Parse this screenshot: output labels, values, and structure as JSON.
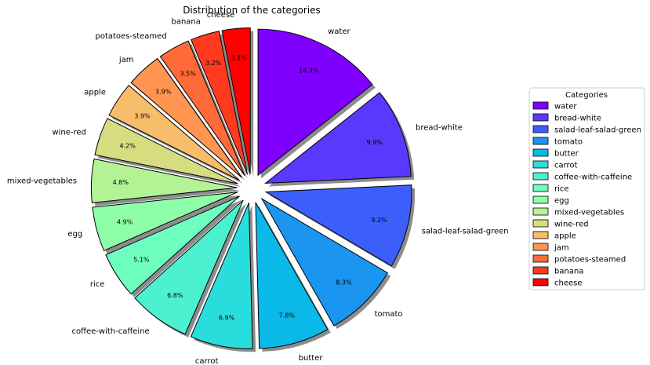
{
  "chart_data": {
    "type": "pie",
    "title": "Distribution of the categories",
    "start_angle_deg": 90,
    "direction": "clockwise",
    "exploded": true,
    "shadow": true,
    "legend": {
      "title": "Categories",
      "placement": "right"
    },
    "slices": [
      {
        "label": "water",
        "value": 14.3,
        "pct_label": "14.3%",
        "color": "#8000ff"
      },
      {
        "label": "bread-white",
        "value": 9.9,
        "pct_label": "9.9%",
        "color": "#5b38fd"
      },
      {
        "label": "salad-leaf-salad-green",
        "value": 9.2,
        "pct_label": "9.2%",
        "color": "#3c5ffb"
      },
      {
        "label": "tomato",
        "value": 8.3,
        "pct_label": "8.3%",
        "color": "#1a95f0"
      },
      {
        "label": "butter",
        "value": 7.8,
        "pct_label": "7.8%",
        "color": "#0ab9e8"
      },
      {
        "label": "carrot",
        "value": 6.9,
        "pct_label": "6.9%",
        "color": "#2adddd"
      },
      {
        "label": "coffee-with-caffeine",
        "value": 6.8,
        "pct_label": "6.8%",
        "color": "#4cf2d0"
      },
      {
        "label": "rice",
        "value": 5.1,
        "pct_label": "5.1%",
        "color": "#6efec0"
      },
      {
        "label": "egg",
        "value": 4.9,
        "pct_label": "4.9%",
        "color": "#8ffea8"
      },
      {
        "label": "mixed-vegetables",
        "value": 4.8,
        "pct_label": "4.8%",
        "color": "#b4f296"
      },
      {
        "label": "wine-red",
        "value": 4.2,
        "pct_label": "4.2%",
        "color": "#d6dc80"
      },
      {
        "label": "apple",
        "value": 3.9,
        "pct_label": "3.9%",
        "color": "#f8bd6a"
      },
      {
        "label": "jam",
        "value": 3.9,
        "pct_label": "3.9%",
        "color": "#ff9550"
      },
      {
        "label": "potatoes-steamed",
        "value": 3.5,
        "pct_label": "3.5%",
        "color": "#ff6a38"
      },
      {
        "label": "banana",
        "value": 3.2,
        "pct_label": "3.2%",
        "color": "#ff3a1f"
      },
      {
        "label": "cheese",
        "value": 3.1,
        "pct_label": "3.1%",
        "color": "#ff0000"
      }
    ]
  }
}
